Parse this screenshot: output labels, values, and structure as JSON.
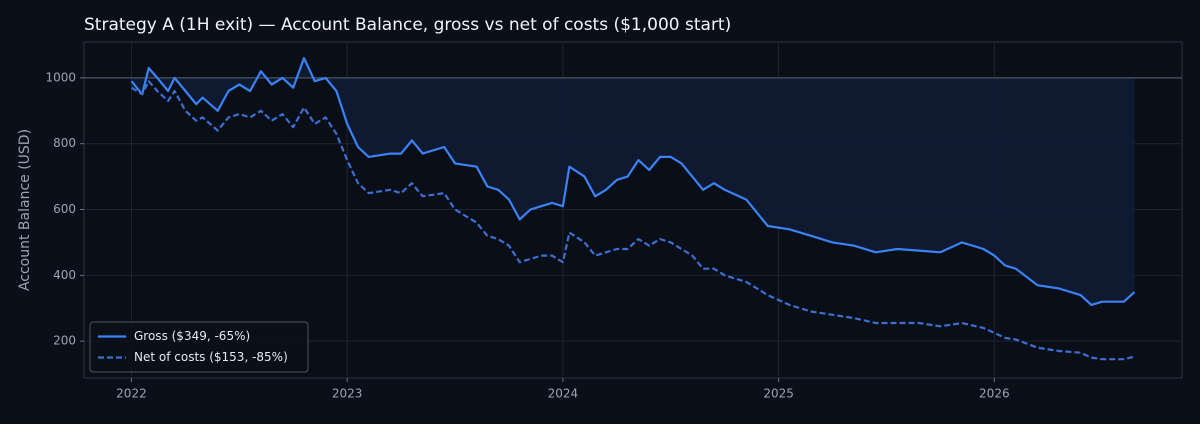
{
  "chart_data": {
    "type": "line",
    "title": "Strategy A (1H exit) — Account Balance, gross vs net of costs ($1,000 start)",
    "y_label": "Account Balance (USD)",
    "x": [
      2022.0,
      2022.05,
      2022.08,
      2022.12,
      2022.17,
      2022.2,
      2022.25,
      2022.3,
      2022.33,
      2022.4,
      2022.45,
      2022.5,
      2022.55,
      2022.6,
      2022.65,
      2022.7,
      2022.75,
      2022.8,
      2022.85,
      2022.9,
      2022.95,
      2023.0,
      2023.05,
      2023.1,
      2023.2,
      2023.25,
      2023.3,
      2023.35,
      2023.45,
      2023.5,
      2023.6,
      2023.65,
      2023.7,
      2023.75,
      2023.8,
      2023.85,
      2023.9,
      2023.95,
      2024.0,
      2024.03,
      2024.1,
      2024.15,
      2024.2,
      2024.25,
      2024.3,
      2024.35,
      2024.4,
      2024.45,
      2024.5,
      2024.55,
      2024.6,
      2024.65,
      2024.7,
      2024.75,
      2024.85,
      2024.95,
      2025.05,
      2025.15,
      2025.25,
      2025.35,
      2025.45,
      2025.55,
      2025.65,
      2025.75,
      2025.85,
      2025.95,
      2026.0,
      2026.05,
      2026.1,
      2026.2,
      2026.3,
      2026.4,
      2026.45,
      2026.5,
      2026.6,
      2026.65
    ],
    "series": [
      {
        "name": "Gross ($349, -65%)",
        "color": "#3b82f6",
        "dash": false,
        "values": [
          990,
          950,
          1030,
          1000,
          960,
          1000,
          960,
          920,
          940,
          900,
          960,
          980,
          960,
          1020,
          980,
          1000,
          970,
          1060,
          990,
          1000,
          960,
          860,
          790,
          760,
          770,
          770,
          810,
          770,
          790,
          740,
          730,
          670,
          660,
          630,
          570,
          600,
          610,
          620,
          610,
          730,
          700,
          640,
          660,
          690,
          700,
          750,
          720,
          760,
          760,
          740,
          700,
          660,
          680,
          660,
          630,
          550,
          540,
          520,
          500,
          490,
          470,
          480,
          475,
          470,
          500,
          480,
          460,
          430,
          420,
          370,
          360,
          340,
          310,
          320,
          320,
          349
        ]
      },
      {
        "name": "Net of costs ($153, -85%)",
        "color": "#3b6fd4",
        "dash": true,
        "values": [
          970,
          950,
          990,
          960,
          930,
          960,
          900,
          870,
          880,
          840,
          880,
          890,
          880,
          900,
          870,
          890,
          850,
          910,
          860,
          880,
          830,
          750,
          680,
          650,
          660,
          650,
          680,
          640,
          650,
          600,
          560,
          520,
          510,
          490,
          440,
          450,
          460,
          460,
          440,
          530,
          500,
          460,
          470,
          480,
          480,
          510,
          490,
          510,
          500,
          480,
          460,
          420,
          420,
          400,
          380,
          340,
          310,
          290,
          280,
          270,
          255,
          255,
          255,
          245,
          255,
          240,
          225,
          210,
          205,
          180,
          170,
          165,
          150,
          145,
          145,
          153
        ]
      }
    ],
    "reference_line": 1000,
    "xlim": [
      2021.78,
      2026.87
    ],
    "xticks": [
      2022,
      2023,
      2024,
      2025,
      2026
    ],
    "ylim": [
      88,
      1109
    ],
    "yticks": [
      200,
      400,
      600,
      800,
      1000
    ],
    "grid": true,
    "legend": "lower-left"
  }
}
